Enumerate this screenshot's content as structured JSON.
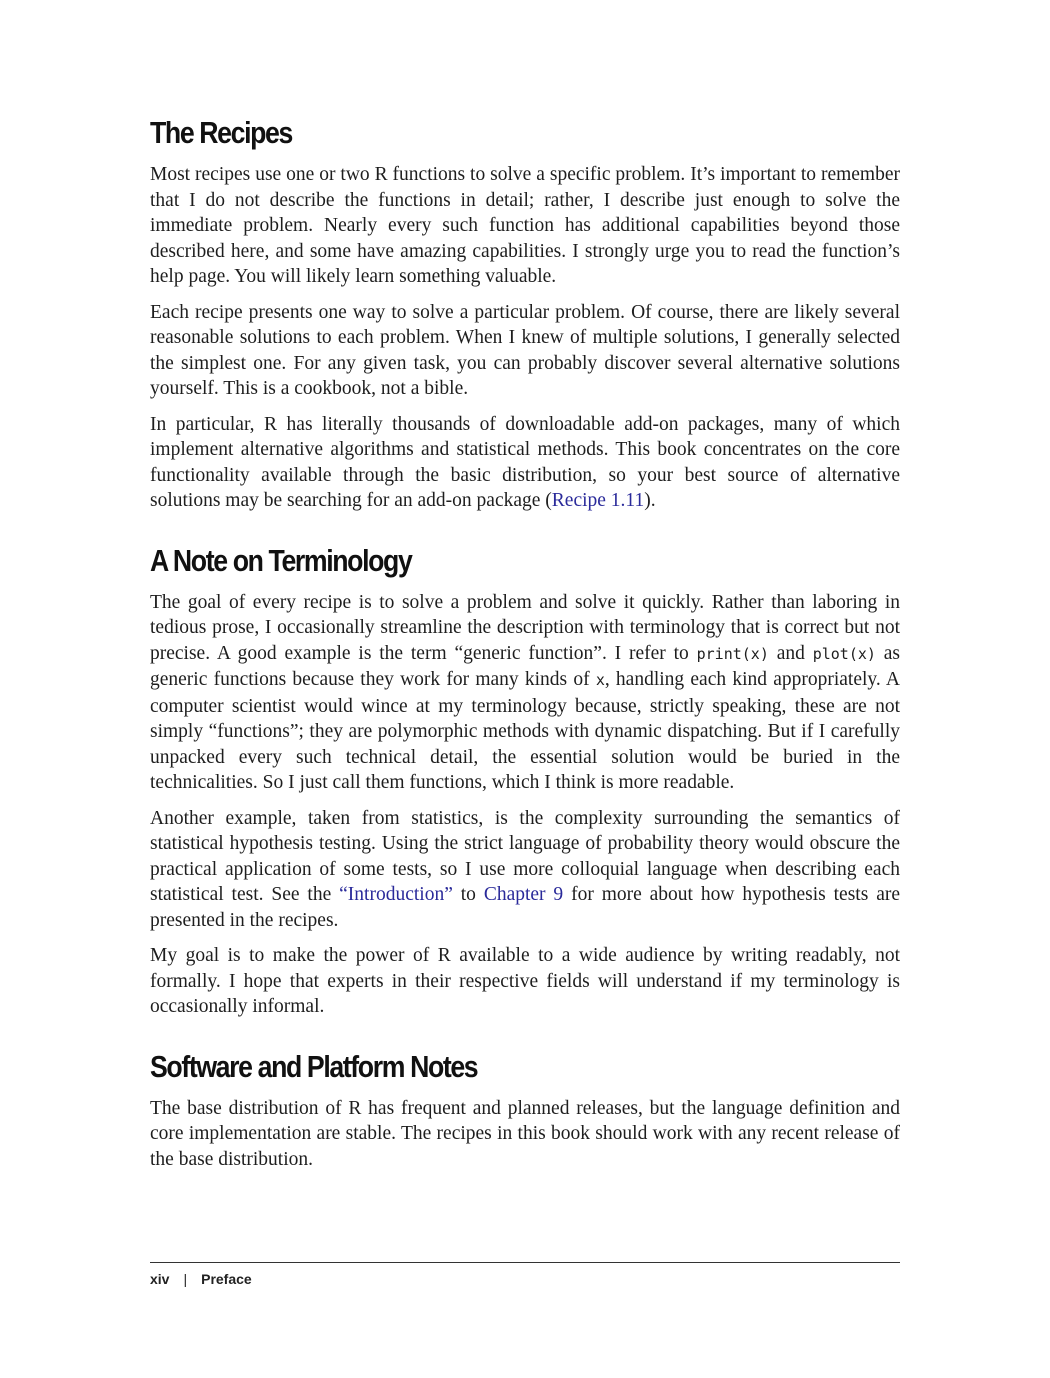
{
  "sections": [
    {
      "heading": "The Recipes",
      "paragraphs": {
        "p1": "Most recipes use one or two R functions to solve a specific problem. It’s important to remember that I do not describe the functions in detail; rather, I describe just enough to solve the immediate problem. Nearly every such function has additional capabilities beyond those described here, and some have amazing capabilities. I strongly urge you to read the function’s help page. You will likely learn something valuable.",
        "p2": "Each recipe presents one way to solve a particular problem. Of course, there are likely several reasonable solutions to each problem. When I knew of multiple solutions, I generally selected the simplest one. For any given task, you can probably discover several alternative solutions yourself. This is a cookbook, not a bible.",
        "p3_a": "In particular, R has literally thousands of downloadable add-on packages, many of which implement alternative algorithms and statistical methods. This book concentrates on the core functionality available through the basic distribution, so your best source of alternative solutions may be searching for an add-on package (",
        "p3_link": "Recipe 1.11",
        "p3_b": ")."
      }
    },
    {
      "heading": "A Note on Terminology",
      "paragraphs": {
        "p1_a": "The goal of every recipe is to solve a problem and solve it quickly. Rather than laboring in tedious prose, I occasionally streamline the description with terminology that is correct but not precise. A good example is the term “generic function”. I refer to ",
        "p1_code1": "print(x)",
        "p1_b": " and ",
        "p1_code2": "plot(x)",
        "p1_c": " as generic functions because they work for many kinds of ",
        "p1_code3": "x",
        "p1_d": ", handling each kind appropriately. A computer scientist would wince at my terminology because, strictly speaking, these are not simply “functions”; they are polymorphic methods with dynamic dispatching. But if I carefully unpacked every such technical detail, the essential solution would be buried in the technicalities. So I just call them functions, which I think is more readable.",
        "p2_a": "Another example, taken from statistics, is the complexity surrounding the semantics of statistical hypothesis testing. Using the strict language of probability theory would obscure the practical application of some tests, so I use more colloquial language when describing each statistical test. See the ",
        "p2_link1": "“Introduction”",
        "p2_b": " to ",
        "p2_link2": "Chapter 9",
        "p2_c": " for more about how hypothesis tests are presented in the recipes.",
        "p3": "My goal is to make the power of R available to a wide audience by writing readably, not formally. I hope that experts in their respective fields will understand if my terminology is occasionally informal."
      }
    },
    {
      "heading": "Software and Platform Notes",
      "paragraphs": {
        "p1": "The base distribution of R has frequent and planned releases, but the language definition and core implementation are stable. The recipes in this book should work with any recent release of the base distribution."
      }
    }
  ],
  "footer": {
    "page_number": "xiv",
    "separator": "|",
    "section": "Preface"
  },
  "colors": {
    "link": "#2a2a9a",
    "text": "#1e1e1e"
  }
}
